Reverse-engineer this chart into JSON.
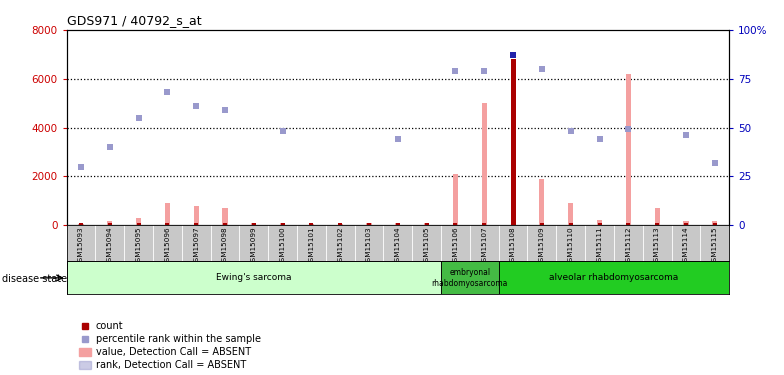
{
  "title": "GDS971 / 40792_s_at",
  "samples": [
    "GSM15093",
    "GSM15094",
    "GSM15095",
    "GSM15096",
    "GSM15097",
    "GSM15098",
    "GSM15099",
    "GSM15100",
    "GSM15101",
    "GSM15102",
    "GSM15103",
    "GSM15104",
    "GSM15105",
    "GSM15106",
    "GSM15107",
    "GSM15108",
    "GSM15109",
    "GSM15110",
    "GSM15111",
    "GSM15112",
    "GSM15113",
    "GSM15114",
    "GSM15115"
  ],
  "pink_bars": [
    60,
    160,
    280,
    900,
    800,
    700,
    80,
    80,
    60,
    60,
    70,
    90,
    80,
    2100,
    5000,
    6800,
    1900,
    900,
    200,
    6200,
    700,
    150,
    160
  ],
  "blue_squares_pct": [
    30,
    40,
    55,
    68,
    61,
    59,
    null,
    48,
    null,
    null,
    null,
    44,
    null,
    79,
    79,
    87,
    80,
    48,
    44,
    49,
    null,
    46,
    32
  ],
  "red_squares_val": [
    null,
    null,
    null,
    null,
    null,
    null,
    null,
    null,
    null,
    null,
    null,
    null,
    null,
    null,
    null,
    null,
    null,
    null,
    null,
    null,
    null,
    null,
    null
  ],
  "red_bar_index": 15,
  "red_bar_height": 6800,
  "ylim_left": [
    0,
    8000
  ],
  "ylim_right": [
    0,
    100
  ],
  "yticks_left": [
    0,
    2000,
    4000,
    6000,
    8000
  ],
  "yticks_right": [
    0,
    25,
    50,
    75,
    100
  ],
  "left_axis_color": "#CC0000",
  "right_axis_color": "#0000BB",
  "pink_color": "#F4A0A0",
  "blue_color": "#9999CC",
  "red_color": "#AA0000",
  "dark_red_color": "#880000",
  "bg_color": "#FFFFFF",
  "dotted_line_color": "#000000",
  "sample_bg": "#C8C8C8",
  "ewings_color": "#CCFFCC",
  "embryonal_color": "#44BB44",
  "alveolar_color": "#22CC22",
  "disease_groups": [
    {
      "label": "Ewing's sarcoma",
      "start": 0,
      "end": 13
    },
    {
      "label": "embryonal\nrhabdomyosarcoma",
      "start": 13,
      "end": 15
    },
    {
      "label": "alveolar rhabdomyosarcoma",
      "start": 15,
      "end": 23
    }
  ],
  "figsize": [
    7.84,
    3.75
  ],
  "dpi": 100
}
